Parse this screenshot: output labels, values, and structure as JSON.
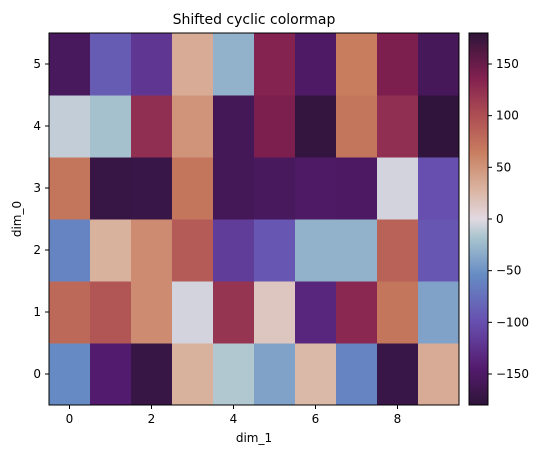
{
  "chart_data": {
    "type": "heatmap",
    "title": "Shifted cyclic colormap",
    "xlabel": "dim_1",
    "ylabel": "dim_0",
    "x": [
      0,
      1,
      2,
      3,
      4,
      5,
      6,
      7,
      8,
      9
    ],
    "y": [
      0,
      1,
      2,
      3,
      4,
      5
    ],
    "xlim": [
      -0.5,
      9.5
    ],
    "ylim": [
      -0.5,
      5.5
    ],
    "xticks": [
      0,
      2,
      4,
      6,
      8
    ],
    "yticks": [
      0,
      1,
      2,
      3,
      4,
      5
    ],
    "colorbar": {
      "range": [
        -180,
        180
      ],
      "ticks": [
        150,
        100,
        50,
        0,
        -50,
        -100,
        -150
      ]
    },
    "values": [
      [
        -55,
        -145,
        -172,
        30,
        -15,
        -40,
        25,
        -60,
        -170,
        35
      ],
      [
        80,
        95,
        55,
        -5,
        120,
        15,
        -135,
        130,
        70,
        -40
      ],
      [
        -60,
        30,
        55,
        90,
        -115,
        -95,
        -30,
        -30,
        85,
        -95
      ],
      [
        70,
        -172,
        -170,
        70,
        -160,
        -155,
        -150,
        -152,
        -5,
        -100
      ],
      [
        -10,
        -20,
        125,
        50,
        -160,
        140,
        -175,
        70,
        125,
        -178
      ],
      [
        -155,
        -90,
        -120,
        35,
        -30,
        135,
        -150,
        65,
        140,
        -158
      ]
    ]
  }
}
